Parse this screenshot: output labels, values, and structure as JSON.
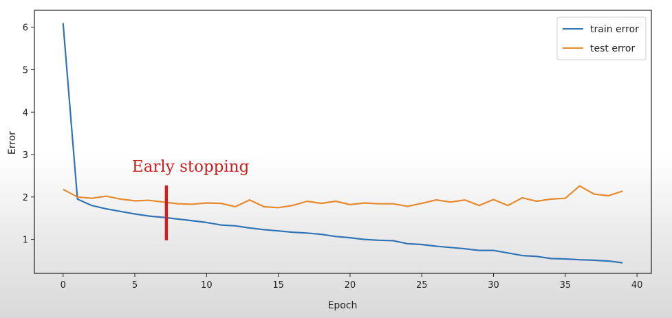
{
  "chart_data": {
    "type": "line",
    "title": "",
    "xlabel": "Epoch",
    "ylabel": "Error",
    "xlim": [
      -2,
      41
    ],
    "ylim": [
      0.2,
      6.4
    ],
    "xticks": [
      0,
      5,
      10,
      15,
      20,
      25,
      30,
      35,
      40
    ],
    "yticks": [
      1,
      2,
      3,
      4,
      5,
      6
    ],
    "grid": false,
    "legend_position": "top-right",
    "series": [
      {
        "name": "train error",
        "color": "#2f74b5",
        "x": [
          0,
          1,
          2,
          3,
          4,
          5,
          6,
          7,
          8,
          9,
          10,
          11,
          12,
          13,
          14,
          15,
          16,
          17,
          18,
          19,
          20,
          21,
          22,
          23,
          24,
          25,
          26,
          27,
          28,
          29,
          30,
          31,
          32,
          33,
          34,
          35,
          36,
          37,
          38,
          39
        ],
        "values": [
          6.1,
          1.95,
          1.8,
          1.72,
          1.66,
          1.6,
          1.55,
          1.52,
          1.48,
          1.44,
          1.4,
          1.34,
          1.32,
          1.27,
          1.23,
          1.2,
          1.17,
          1.15,
          1.12,
          1.07,
          1.04,
          1.0,
          0.98,
          0.97,
          0.9,
          0.88,
          0.84,
          0.81,
          0.78,
          0.74,
          0.74,
          0.68,
          0.62,
          0.6,
          0.55,
          0.54,
          0.52,
          0.51,
          0.49,
          0.45
        ]
      },
      {
        "name": "test error",
        "color": "#e8892c",
        "x": [
          0,
          1,
          2,
          3,
          4,
          5,
          6,
          7,
          8,
          9,
          10,
          11,
          12,
          13,
          14,
          15,
          16,
          17,
          18,
          19,
          20,
          21,
          22,
          23,
          24,
          25,
          26,
          27,
          28,
          29,
          30,
          31,
          32,
          33,
          34,
          35,
          36,
          37,
          38,
          39
        ],
        "values": [
          2.18,
          2.0,
          1.97,
          2.02,
          1.95,
          1.91,
          1.92,
          1.88,
          1.84,
          1.83,
          1.86,
          1.85,
          1.77,
          1.93,
          1.77,
          1.75,
          1.8,
          1.9,
          1.85,
          1.9,
          1.82,
          1.86,
          1.84,
          1.84,
          1.78,
          1.85,
          1.93,
          1.88,
          1.93,
          1.8,
          1.94,
          1.8,
          1.98,
          1.9,
          1.95,
          1.97,
          2.26,
          2.07,
          2.03,
          2.14
        ]
      }
    ],
    "annotations": [
      {
        "text": "Early stopping",
        "color": "#cc1f1f",
        "x": 7.2,
        "y_from": 0.98,
        "y_to": 2.27
      }
    ]
  }
}
